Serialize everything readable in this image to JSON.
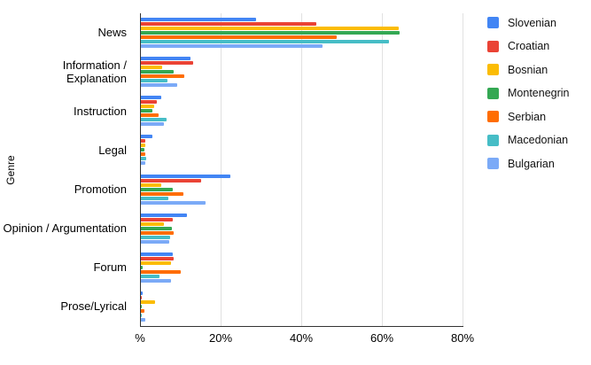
{
  "chart_data": {
    "type": "bar",
    "orientation": "horizontal",
    "title": "",
    "xlabel": "%",
    "ylabel": "Genre",
    "xlim": [
      0,
      80
    ],
    "grid": true,
    "legend_position": "right",
    "x_ticks": [
      {
        "value": 0,
        "label": "%"
      },
      {
        "value": 20,
        "label": "20%"
      },
      {
        "value": 40,
        "label": "40%"
      },
      {
        "value": 60,
        "label": "60%"
      },
      {
        "value": 80,
        "label": "80%"
      }
    ],
    "categories": [
      "News",
      "Information / Explanation",
      "Instruction",
      "Legal",
      "Promotion",
      "Opinion / Argumentation",
      "Forum",
      "Prose/Lyrical"
    ],
    "series": [
      {
        "name": "Slovenian",
        "color": "#4285F4",
        "values": [
          28.5,
          12.3,
          5.1,
          2.8,
          22.3,
          11.4,
          7.9,
          0.4
        ]
      },
      {
        "name": "Croatian",
        "color": "#EA4335",
        "values": [
          43.5,
          12.9,
          3.9,
          1.0,
          14.9,
          7.9,
          8.1,
          0.2
        ]
      },
      {
        "name": "Bosnian",
        "color": "#FBBC04",
        "values": [
          63.9,
          5.2,
          3.4,
          1.2,
          5.1,
          5.8,
          7.4,
          3.5
        ]
      },
      {
        "name": "Montenegrin",
        "color": "#34A853",
        "values": [
          64.1,
          8.2,
          2.9,
          0.8,
          7.9,
          7.6,
          0.5,
          0.3
        ]
      },
      {
        "name": "Serbian",
        "color": "#FF6D01",
        "values": [
          48.5,
          10.7,
          4.3,
          1.0,
          10.5,
          8.1,
          9.8,
          0.8
        ]
      },
      {
        "name": "Macedonian",
        "color": "#46BDC6",
        "values": [
          61.5,
          6.7,
          6.3,
          1.4,
          6.9,
          7.3,
          4.7,
          0.3
        ]
      },
      {
        "name": "Bulgarian",
        "color": "#7BAAF7",
        "values": [
          45.0,
          9.1,
          5.8,
          1.2,
          16.0,
          7.0,
          7.4,
          1.2
        ]
      }
    ]
  }
}
